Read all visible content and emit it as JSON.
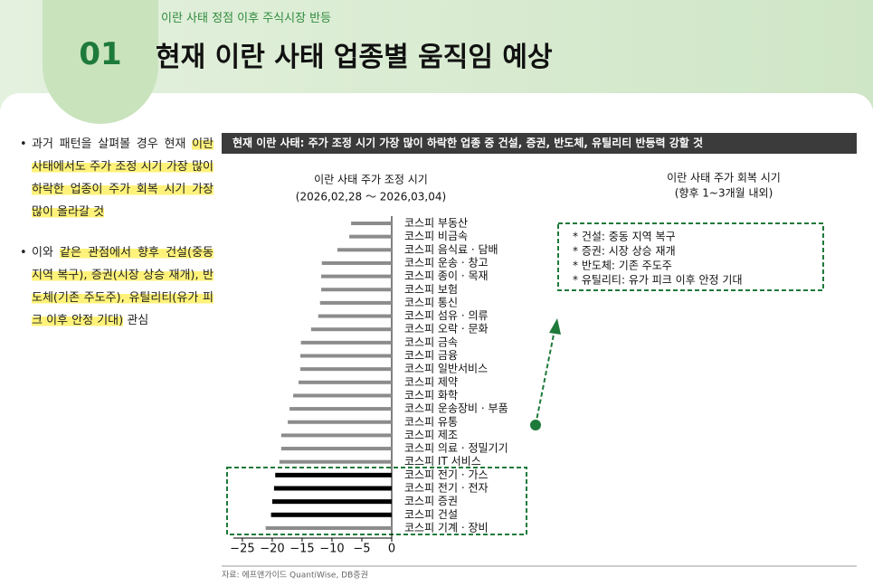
{
  "header": {
    "subtitle": "이란 사태 정점 이후 주식시장 반등",
    "number": "01",
    "title": "현재 이란 사태 업종별 움직임 예상"
  },
  "bullets": [
    {
      "segments": [
        {
          "text": "과거 패턴을 살펴볼 경우 현재 ",
          "highlight": false
        },
        {
          "text": "이란 사태에서도 주가 조정 시기 가장 많이 하락한 업종이 주가 회복 시기 가장 많이 올라갈 것",
          "highlight": true
        }
      ]
    },
    {
      "segments": [
        {
          "text": "이와 ",
          "highlight": false
        },
        {
          "text": "같은 관점에서 향후 건설(중동 지역 복구), 증권(시장 상승 재개), 반도체(기존 주도주), 유틸리티(유가 피크 이후 안정 기대)",
          "highlight": true
        },
        {
          "text": " 관심",
          "highlight": false
        }
      ]
    }
  ],
  "banner": "현재 이란 사태: 주가 조정 시기 가장 많이 하락한 업종 중 건설, 증권, 반도체, 유틸리티 반등력 강할 것",
  "chart_data": {
    "type": "hbar",
    "title": "이란 사태 주가 조정 시기",
    "subtitle": "(2026,02,28 ～ 2026,03,04)",
    "recovery_title": "이란 사태 주가 회복 시기",
    "recovery_subtitle": "(향후 1~3개월 내외)",
    "recovery_notes": [
      "* 건설: 중동 지역 복구",
      "* 증권: 시장 상승 재개",
      "* 반도체: 기존 주도주",
      "* 유틸리티: 유가 피크 이후 안정 기대"
    ],
    "categories": [
      "코스피 부동산",
      "코스피 비금속",
      "코스피 음식료 · 담배",
      "코스피 운송 · 창고",
      "코스피 종이 · 목재",
      "코스피 보험",
      "코스피 통신",
      "코스피 섬유 · 의류",
      "코스피 오락 · 문화",
      "코스피 금속",
      "코스피 금융",
      "코스피 일반서비스",
      "코스피 제약",
      "코스피 화학",
      "코스피 운송장비 · 부품",
      "코스피 유통",
      "코스피 제조",
      "코스피 의료 · 정밀기기",
      "코스피 IT 서비스",
      "코스피 전기 · 가스",
      "코스피 전기 · 전자",
      "코스피 증권",
      "코스피 건설",
      "코스피 기계 · 장비"
    ],
    "values": [
      -6.8,
      -7.1,
      -9.1,
      -11.7,
      -11.8,
      -11.8,
      -12.0,
      -12.3,
      -13.5,
      -15.2,
      -15.3,
      -15.3,
      -15.6,
      -16.5,
      -17.1,
      -17.4,
      -18.5,
      -18.5,
      -18.8,
      -19.5,
      -19.7,
      -20.0,
      -20.2,
      -21.1
    ],
    "colors": [
      "#8c8c8c",
      "#8c8c8c",
      "#8c8c8c",
      "#8c8c8c",
      "#8c8c8c",
      "#8c8c8c",
      "#8c8c8c",
      "#8c8c8c",
      "#8c8c8c",
      "#8c8c8c",
      "#8c8c8c",
      "#8c8c8c",
      "#8c8c8c",
      "#8c8c8c",
      "#8c8c8c",
      "#8c8c8c",
      "#8c8c8c",
      "#8c8c8c",
      "#8c8c8c",
      "#000000",
      "#000000",
      "#000000",
      "#000000",
      "#8c8c8c"
    ],
    "xlim": [
      -26.5,
      0
    ],
    "xticks": [
      {
        "value": -25,
        "label": "−25"
      },
      {
        "value": -20,
        "label": "−20"
      },
      {
        "value": -15,
        "label": "−15"
      },
      {
        "value": -10,
        "label": "−10"
      },
      {
        "value": -5,
        "label": "−5"
      },
      0
    ]
  },
  "source": "자료: 에프앤가이드 QuantiWise, DB증권"
}
